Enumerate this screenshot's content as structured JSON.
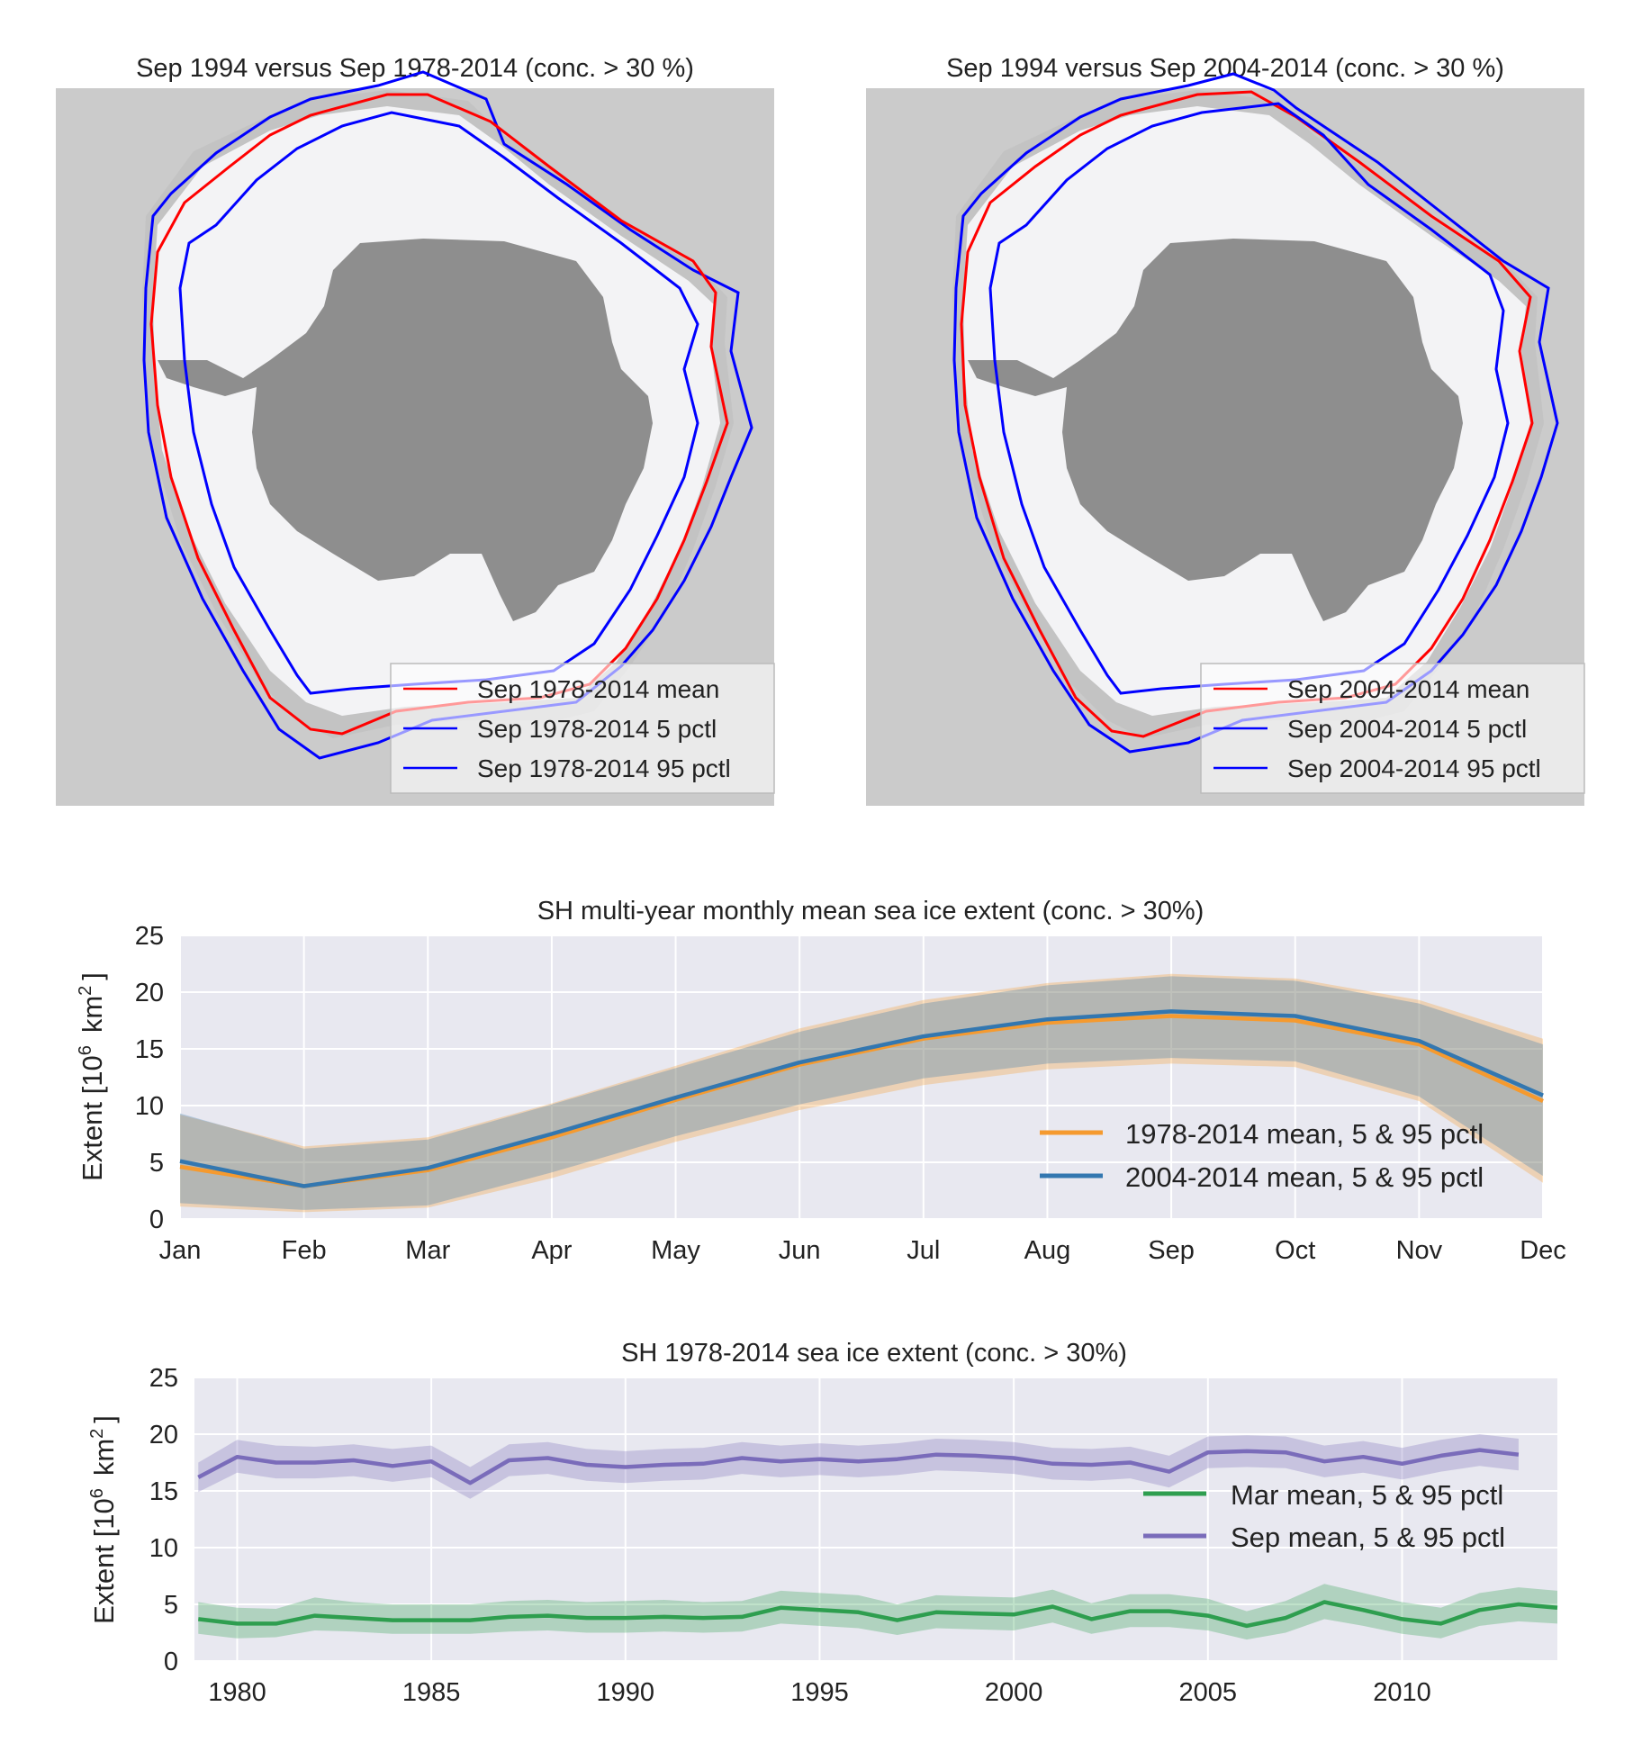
{
  "colors": {
    "land": "#8e8e8e",
    "ocean": "#cbcbcb",
    "ice": "#f3f3f5",
    "mean_line": "#ff0000",
    "pctl_line": "#0000ff",
    "plot_bg": "#e8e8f0",
    "orange": "#f59a2f",
    "blue": "#3377b0",
    "green": "#2e9e4f",
    "purple": "#7a6cba"
  },
  "maps": [
    {
      "title": "Sep 1994 versus Sep 1978-2014 (conc. > 30 %)",
      "legend": [
        "Sep 1978-2014 mean",
        "Sep 1978-2014 5 pctl",
        "Sep 1978-2014 95 pctl"
      ]
    },
    {
      "title": "Sep 1994 versus Sep 2004-2014 (conc. > 30 %)",
      "legend": [
        "Sep 2004-2014 mean",
        "Sep 2004-2014 5 pctl",
        "Sep 2004-2014 95 pctl"
      ]
    }
  ],
  "chart_data": [
    {
      "type": "line",
      "title": "SH multi-year monthly mean sea ice extent (conc. > 30%)",
      "ylabel_main": "Extent ",
      "ylabel_math": "[10",
      "ylabel_exp1": "6",
      "ylabel_unit": "km",
      "ylabel_exp2": "2",
      "ylabel_close": "]",
      "categories": [
        "Jan",
        "Feb",
        "Mar",
        "Apr",
        "May",
        "Jun",
        "Jul",
        "Aug",
        "Sep",
        "Oct",
        "Nov",
        "Dec"
      ],
      "ylim": [
        0,
        25
      ],
      "yticks": [
        0,
        5,
        10,
        15,
        20,
        25
      ],
      "grid": true,
      "legend_position": "lower-right",
      "series": [
        {
          "name": "1978-2014 mean, 5 & 95 pctl",
          "color": "#f59a2f",
          "mean": [
            4.6,
            2.9,
            4.3,
            7.2,
            10.5,
            13.6,
            15.9,
            17.3,
            17.9,
            17.5,
            15.4,
            10.4
          ],
          "p5": [
            1.1,
            0.6,
            1.0,
            3.6,
            6.8,
            9.6,
            11.8,
            13.2,
            13.7,
            13.4,
            10.4,
            3.2
          ],
          "p95": [
            9.2,
            6.4,
            7.2,
            10.2,
            13.5,
            16.8,
            19.3,
            20.8,
            21.6,
            21.2,
            19.3,
            15.9
          ]
        },
        {
          "name": "2004-2014 mean, 5 & 95 pctl",
          "color": "#3377b0",
          "mean": [
            5.1,
            2.9,
            4.5,
            7.5,
            10.7,
            13.8,
            16.1,
            17.6,
            18.3,
            17.9,
            15.7,
            10.9
          ],
          "p5": [
            1.4,
            0.8,
            1.2,
            4.1,
            7.3,
            10.1,
            12.4,
            13.7,
            14.2,
            13.9,
            10.8,
            3.8
          ],
          "p95": [
            9.3,
            6.2,
            7.0,
            10.1,
            13.3,
            16.5,
            19.0,
            20.6,
            21.4,
            21.0,
            19.0,
            15.4
          ]
        }
      ]
    },
    {
      "type": "line",
      "title": "SH 1978-2014 sea ice extent (conc. > 30%)",
      "ylabel_main": "Extent ",
      "ylabel_math": "[10",
      "ylabel_exp1": "6",
      "ylabel_unit": "km",
      "ylabel_exp2": "2",
      "ylabel_close": "]",
      "xlim": [
        1978.9,
        2014
      ],
      "xticks": [
        1980,
        1985,
        1990,
        1995,
        2000,
        2005,
        2010
      ],
      "ylim": [
        0,
        25
      ],
      "yticks": [
        0,
        5,
        10,
        15,
        20,
        25
      ],
      "grid": true,
      "legend_position": "right",
      "series": [
        {
          "name": "Mar mean, 5 & 95 pctl",
          "color": "#2e9e4f",
          "x": [
            1979,
            1980,
            1981,
            1982,
            1983,
            1984,
            1985,
            1986,
            1987,
            1988,
            1989,
            1990,
            1991,
            1992,
            1993,
            1994,
            1995,
            1996,
            1997,
            1998,
            1999,
            2000,
            2001,
            2002,
            2003,
            2004,
            2005,
            2006,
            2007,
            2008,
            2009,
            2010,
            2011,
            2012,
            2013,
            2014
          ],
          "mean": [
            3.7,
            3.3,
            3.3,
            4.0,
            3.8,
            3.6,
            3.6,
            3.6,
            3.9,
            4.0,
            3.8,
            3.8,
            3.9,
            3.8,
            3.9,
            4.7,
            4.5,
            4.3,
            3.6,
            4.3,
            4.2,
            4.1,
            4.8,
            3.7,
            4.4,
            4.4,
            4.0,
            3.1,
            3.8,
            5.2,
            4.5,
            3.7,
            3.3,
            4.5,
            5.0,
            4.7
          ],
          "p5": [
            2.4,
            2.0,
            2.1,
            2.7,
            2.6,
            2.4,
            2.4,
            2.4,
            2.6,
            2.7,
            2.5,
            2.5,
            2.6,
            2.5,
            2.6,
            3.3,
            3.1,
            2.9,
            2.3,
            2.9,
            2.8,
            2.7,
            3.4,
            2.4,
            3.0,
            3.0,
            2.7,
            1.9,
            2.5,
            3.7,
            3.1,
            2.4,
            2.0,
            3.1,
            3.5,
            3.3
          ],
          "p95": [
            5.2,
            4.7,
            4.6,
            5.6,
            5.2,
            5.0,
            5.0,
            5.0,
            5.3,
            5.4,
            5.2,
            5.3,
            5.4,
            5.2,
            5.3,
            6.2,
            6.0,
            5.8,
            5.0,
            5.8,
            5.7,
            5.6,
            6.3,
            5.1,
            5.9,
            5.9,
            5.5,
            4.4,
            5.3,
            6.8,
            6.0,
            5.2,
            4.7,
            6.0,
            6.5,
            6.2
          ]
        },
        {
          "name": "Sep mean, 5 & 95 pctl",
          "color": "#7a6cba",
          "x": [
            1979,
            1980,
            1981,
            1982,
            1983,
            1984,
            1985,
            1986,
            1987,
            1988,
            1989,
            1990,
            1991,
            1992,
            1993,
            1994,
            1995,
            1996,
            1997,
            1998,
            1999,
            2000,
            2001,
            2002,
            2003,
            2004,
            2005,
            2006,
            2007,
            2008,
            2009,
            2010,
            2011,
            2012,
            2013
          ],
          "mean": [
            16.2,
            18.0,
            17.5,
            17.5,
            17.7,
            17.2,
            17.6,
            15.7,
            17.7,
            17.9,
            17.3,
            17.1,
            17.3,
            17.4,
            17.9,
            17.6,
            17.8,
            17.6,
            17.8,
            18.2,
            18.1,
            17.9,
            17.4,
            17.3,
            17.5,
            16.7,
            18.4,
            18.5,
            18.4,
            17.6,
            18.0,
            17.4,
            18.1,
            18.6,
            18.2
          ],
          "p5": [
            14.9,
            16.6,
            16.1,
            16.1,
            16.3,
            15.8,
            16.2,
            14.3,
            16.3,
            16.5,
            15.9,
            15.7,
            15.9,
            16.0,
            16.5,
            16.2,
            16.4,
            16.2,
            16.4,
            16.8,
            16.7,
            16.5,
            16.0,
            15.9,
            16.1,
            15.3,
            17.0,
            17.1,
            17.0,
            16.2,
            16.6,
            16.0,
            16.7,
            17.2,
            16.8
          ],
          "p95": [
            17.5,
            19.5,
            19.0,
            18.9,
            19.1,
            18.7,
            19.0,
            17.1,
            19.1,
            19.3,
            18.7,
            18.5,
            18.7,
            18.8,
            19.3,
            19.0,
            19.2,
            19.0,
            19.2,
            19.6,
            19.5,
            19.3,
            18.8,
            18.7,
            18.9,
            18.1,
            19.8,
            19.9,
            19.8,
            19.0,
            19.4,
            18.8,
            19.5,
            20.0,
            19.6
          ]
        }
      ]
    }
  ]
}
